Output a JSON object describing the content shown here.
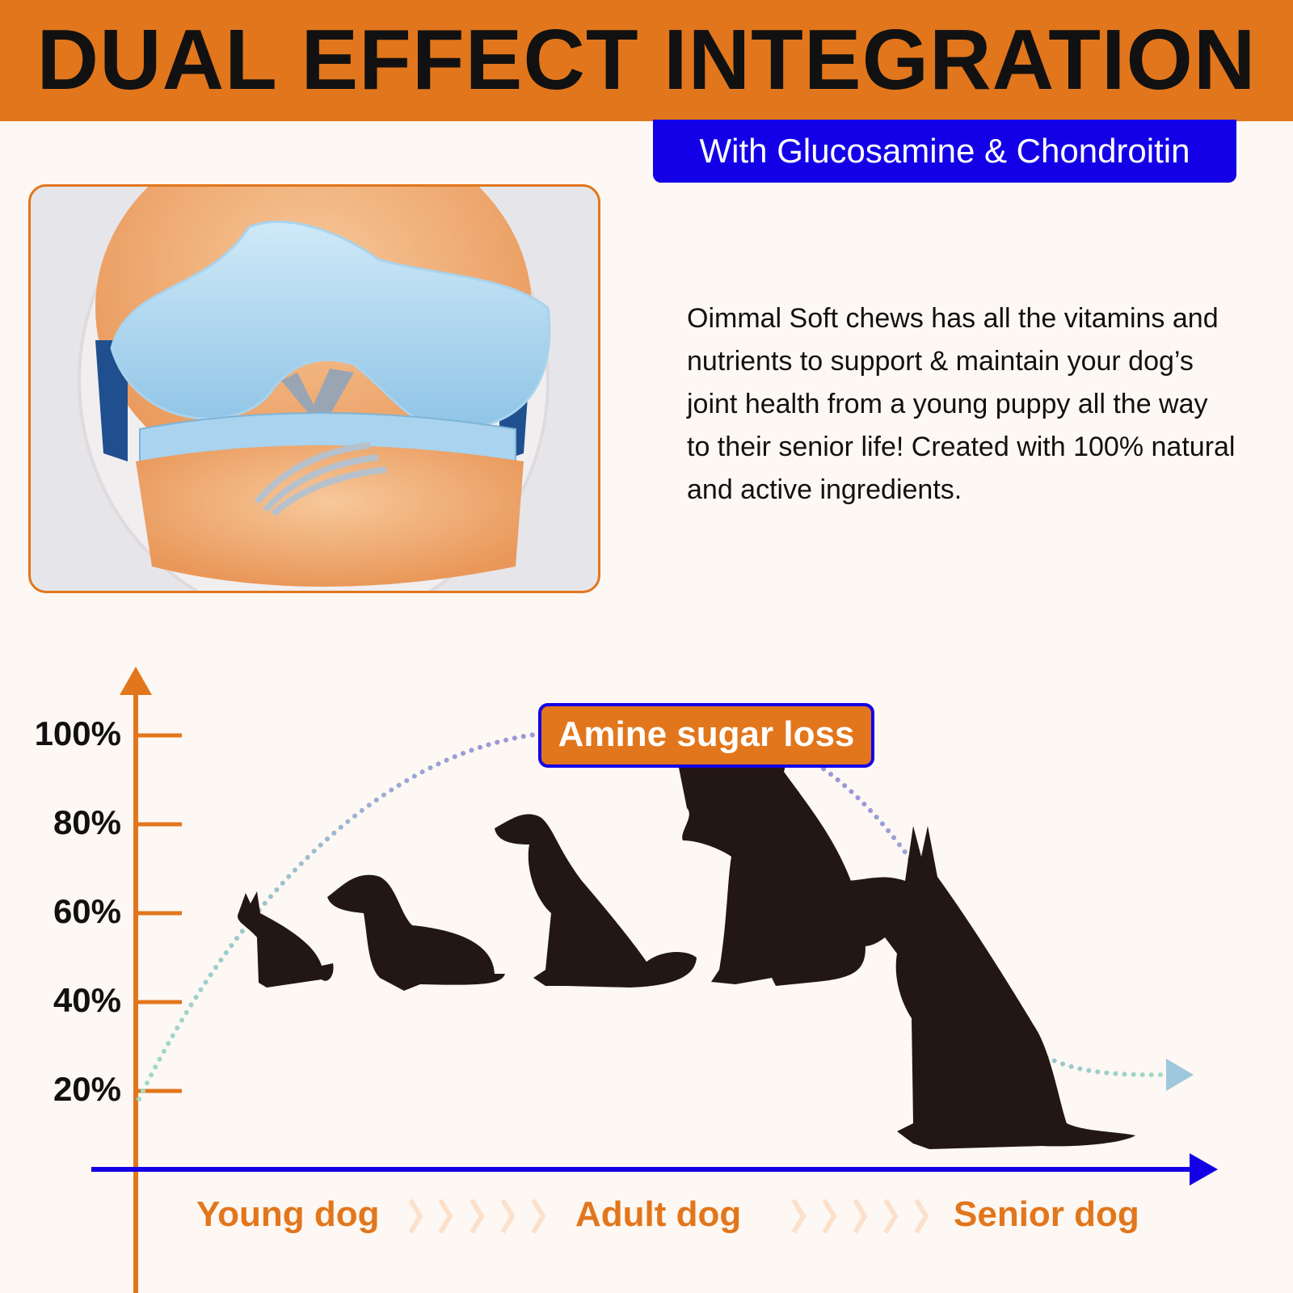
{
  "header": {
    "title": "DUAL EFFECT INTEGRATION",
    "subtitle": "With Glucosamine & Chondroitin"
  },
  "description": "Oimmal Soft chews has all the vitamins and nutrients to support & maintain your dog’s joint health from a young puppy all the way to their senior life! Created with 100% natural and active ingredients.",
  "chart": {
    "y_ticks": [
      "100%",
      "80%",
      "60%",
      "40%",
      "20%"
    ],
    "callout": "Amine sugar loss",
    "stages": [
      "Young dog",
      "Adult dog",
      "Senior dog"
    ],
    "colors": {
      "axis_y": "#e2761c",
      "axis_x": "#1400e6",
      "curve_start": "#9fdcc8",
      "curve_mid": "#9a98d8"
    }
  },
  "colors": {
    "brand_orange": "#e2761c",
    "brand_blue": "#1400e6",
    "background": "#fdf8f3"
  }
}
